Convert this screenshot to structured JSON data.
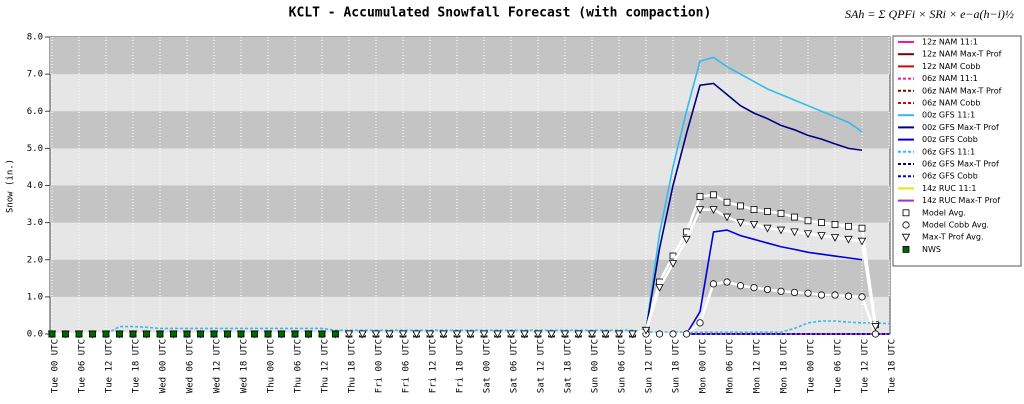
{
  "chart_data": {
    "type": "line",
    "title": "KCLT - Accumulated Snowfall Forecast (with compaction)",
    "formula": "SAh = Σ QPFi × SRi × e−a(h−i)½",
    "y_label": "Snow (in.)",
    "ylim": [
      0,
      8
    ],
    "yticks": [
      {
        "value": 0,
        "label": "0.0"
      },
      {
        "value": 1,
        "label": "1.0"
      },
      {
        "value": 2,
        "label": "2.0"
      },
      {
        "value": 3,
        "label": "3.0"
      },
      {
        "value": 4,
        "label": "4.0"
      },
      {
        "value": 5,
        "label": "5.0"
      },
      {
        "value": 6,
        "label": "6.0"
      },
      {
        "value": 7,
        "label": "7.0"
      },
      {
        "value": 8,
        "label": "8.0"
      }
    ],
    "grid": true,
    "categories": [
      "Tue 00 UTC",
      null,
      "Tue 06 UTC",
      null,
      "Tue 12 UTC",
      null,
      "Tue 18 UTC",
      null,
      "Wed 00 UTC",
      null,
      "Wed 06 UTC",
      null,
      "Wed 12 UTC",
      null,
      "Wed 18 UTC",
      null,
      "Thu 00 UTC",
      null,
      "Thu 06 UTC",
      null,
      "Thu 12 UTC",
      null,
      "Thu 18 UTC",
      null,
      "Fri 00 UTC",
      null,
      "Fri 06 UTC",
      null,
      "Fri 12 UTC",
      null,
      "Fri 18 UTC",
      null,
      "Sat 00 UTC",
      null,
      "Sat 06 UTC",
      null,
      "Sat 12 UTC",
      null,
      "Sat 18 UTC",
      null,
      "Sun 00 UTC",
      null,
      "Sun 06 UTC",
      null,
      "Sun 12 UTC",
      null,
      "Sun 18 UTC",
      null,
      "Mon 00 UTC",
      null,
      "Mon 06 UTC",
      null,
      "Mon 12 UTC",
      null,
      "Mon 18 UTC",
      null,
      "Tue 00 UTC",
      null,
      "Tue 06 UTC",
      null,
      "Tue 12 UTC",
      null,
      "Tue 18 UTC"
    ],
    "series": [
      {
        "name": "12z NAM 11:1",
        "color": "#ff1493",
        "dash": false,
        "values": [
          0,
          0,
          0,
          0,
          0,
          0,
          0,
          0,
          0,
          0,
          0,
          0,
          0,
          0,
          0,
          0,
          0,
          0,
          0,
          0,
          0,
          0,
          0,
          0,
          0,
          0,
          0,
          0,
          0,
          0,
          0,
          0,
          0,
          0,
          0,
          0,
          0,
          0,
          0,
          0,
          0,
          0,
          0,
          0,
          0,
          0,
          0,
          0,
          0,
          0,
          0,
          0,
          0,
          0,
          0,
          0,
          0,
          0,
          0,
          0,
          0,
          0,
          0
        ]
      },
      {
        "name": "12z NAM Max-T Prof",
        "color": "#800000",
        "dash": false,
        "values": [
          0,
          0,
          0,
          0,
          0,
          0,
          0,
          0,
          0,
          0,
          0,
          0,
          0,
          0,
          0,
          0,
          0,
          0,
          0,
          0,
          0,
          0,
          0,
          0,
          0,
          0,
          0,
          0,
          0,
          0,
          0,
          0,
          0,
          0,
          0,
          0,
          0,
          0,
          0,
          0,
          0,
          0,
          0,
          0,
          0,
          0,
          0,
          0,
          0,
          0,
          0,
          0,
          0,
          0,
          0,
          0,
          0,
          0,
          0,
          0,
          0,
          0,
          0
        ]
      },
      {
        "name": "12z NAM Cobb",
        "color": "#dd0000",
        "dash": false,
        "values": [
          0,
          0,
          0,
          0,
          0,
          0,
          0,
          0,
          0,
          0,
          0,
          0,
          0,
          0,
          0,
          0,
          0,
          0,
          0,
          0,
          0,
          0,
          0,
          0,
          0,
          0,
          0,
          0,
          0,
          0,
          0,
          0,
          0,
          0,
          0,
          0,
          0,
          0,
          0,
          0,
          0,
          0,
          0,
          0,
          0,
          0,
          0,
          0,
          0,
          0,
          0,
          0,
          0,
          0,
          0,
          0,
          0,
          0,
          0,
          0,
          0,
          0,
          0
        ]
      },
      {
        "name": "06z NAM 11:1",
        "color": "#ff1493",
        "dash": true,
        "values": [
          0,
          0,
          0,
          0,
          0,
          0,
          0,
          0,
          0,
          0,
          0,
          0,
          0,
          0,
          0,
          0,
          0,
          0,
          0,
          0,
          0,
          0,
          0,
          0,
          0,
          0,
          0,
          0,
          0,
          0,
          0,
          0,
          0,
          0,
          0,
          0,
          0,
          0,
          0,
          0,
          0,
          0,
          0,
          0,
          0,
          0,
          0,
          0,
          0,
          0,
          0,
          0,
          0,
          0,
          0,
          0,
          0,
          0,
          0,
          0,
          0,
          0,
          0
        ]
      },
      {
        "name": "06z NAM Max-T Prof",
        "color": "#800000",
        "dash": true,
        "values": [
          0,
          0,
          0,
          0,
          0,
          0,
          0,
          0,
          0,
          0,
          0,
          0,
          0,
          0,
          0,
          0,
          0,
          0,
          0,
          0,
          0,
          0,
          0,
          0,
          0,
          0,
          0,
          0,
          0,
          0,
          0,
          0,
          0,
          0,
          0,
          0,
          0,
          0,
          0,
          0,
          0,
          0,
          0,
          0,
          0,
          0,
          0,
          0,
          0,
          0,
          0,
          0,
          0,
          0,
          0,
          0,
          0,
          0,
          0,
          0,
          0,
          0,
          0
        ]
      },
      {
        "name": "06z NAM Cobb",
        "color": "#dd0000",
        "dash": true,
        "values": [
          0,
          0,
          0,
          0,
          0,
          0,
          0,
          0,
          0,
          0,
          0,
          0,
          0,
          0,
          0,
          0,
          0,
          0,
          0,
          0,
          0,
          0,
          0,
          0,
          0,
          0,
          0,
          0,
          0,
          0,
          0,
          0,
          0,
          0,
          0,
          0,
          0,
          0,
          0,
          0,
          0,
          0,
          0,
          0,
          0,
          0,
          0,
          0,
          0,
          0,
          0,
          0,
          0,
          0,
          0,
          0,
          0,
          0,
          0,
          0,
          0,
          0,
          0
        ]
      },
      {
        "name": "14z RUC 11:1",
        "color": "#e6e600",
        "dash": false,
        "values": [
          0,
          0,
          0,
          0,
          0,
          0,
          0,
          0,
          0,
          0,
          0,
          0,
          0,
          0,
          0,
          0,
          0,
          0,
          0,
          0,
          0,
          0,
          0,
          0,
          0,
          0,
          0,
          0,
          0,
          0,
          0,
          0,
          0,
          0,
          0,
          0,
          0,
          0,
          0,
          0,
          0,
          0,
          0,
          0,
          0,
          0,
          0,
          0,
          0,
          0,
          0,
          0,
          0,
          0,
          0,
          0,
          0,
          0,
          0,
          0,
          0,
          0,
          0
        ]
      },
      {
        "name": "14z RUC Max-T Prof",
        "color": "#9933cc",
        "dash": false,
        "values": [
          0,
          0,
          0,
          0,
          0,
          0,
          0,
          0,
          0,
          0,
          0,
          0,
          0,
          0,
          0,
          0,
          0,
          0,
          0,
          0,
          0,
          0,
          0,
          0,
          0,
          0,
          0,
          0,
          0,
          0,
          0,
          0,
          0,
          0,
          0,
          0,
          0,
          0,
          0,
          0,
          0,
          0,
          0,
          0,
          0,
          0,
          0,
          0,
          0,
          0,
          0,
          0,
          0,
          0,
          0,
          0,
          0,
          0,
          0,
          0,
          0,
          0,
          0
        ]
      },
      {
        "name": "06z GFS Max-T Prof",
        "color": "#000080",
        "dash": true,
        "values": [
          0,
          0,
          0,
          0,
          0,
          0,
          0,
          0,
          0,
          0,
          0,
          0,
          0,
          0,
          0,
          0,
          0,
          0,
          0,
          0,
          0,
          0,
          0,
          0,
          0,
          0,
          0,
          0,
          0,
          0,
          0,
          0,
          0,
          0,
          0,
          0,
          0,
          0,
          0,
          0,
          0,
          0,
          0,
          0,
          0,
          0,
          0,
          0,
          0,
          0,
          0,
          0,
          0,
          0,
          0,
          0,
          0,
          0,
          0,
          0,
          0,
          0,
          0
        ]
      },
      {
        "name": "06z GFS Cobb",
        "color": "#0000dd",
        "dash": true,
        "values": [
          0,
          0,
          0,
          0,
          0,
          0,
          0,
          0,
          0,
          0,
          0,
          0,
          0,
          0,
          0,
          0,
          0,
          0,
          0,
          0,
          0,
          0,
          0,
          0,
          0,
          0,
          0,
          0,
          0,
          0,
          0,
          0,
          0,
          0,
          0,
          0,
          0,
          0,
          0,
          0,
          0,
          0,
          0,
          0,
          0,
          0,
          0,
          0,
          0,
          0,
          0,
          0,
          0,
          0,
          0,
          0,
          0,
          0,
          0,
          0,
          0,
          0,
          0
        ]
      },
      {
        "name": "06z GFS 11:1",
        "color": "#33bbee",
        "dash": true,
        "values": [
          0,
          0,
          0,
          0,
          0,
          0.2,
          0.2,
          0.18,
          0.15,
          0.15,
          0.15,
          0.15,
          0.15,
          0.15,
          0.15,
          0.15,
          0.15,
          0.15,
          0.15,
          0.15,
          0.15,
          0.1,
          0.1,
          0.1,
          0.1,
          0.1,
          0.1,
          0.1,
          0.1,
          0.1,
          0.1,
          0.1,
          0.1,
          0.1,
          0.1,
          0.1,
          0.1,
          0.1,
          0.1,
          0.1,
          0.1,
          0.1,
          0.1,
          0.1,
          0.05,
          0.05,
          0.05,
          0.05,
          0.05,
          0.05,
          0.05,
          0.05,
          0.05,
          0.05,
          0.05,
          0.15,
          0.3,
          0.35,
          0.35,
          0.32,
          0.3,
          0.3,
          0.28
        ]
      },
      {
        "name": "00z GFS 11:1",
        "color": "#33bbee",
        "dash": false,
        "values": [
          0,
          0,
          0,
          0,
          0,
          0,
          0,
          0,
          0,
          0,
          0,
          0,
          0,
          0,
          0,
          0,
          0,
          0,
          0,
          0,
          0,
          0,
          0,
          0,
          0,
          0,
          0,
          0,
          0,
          0,
          0,
          0,
          0,
          0,
          0,
          0,
          0,
          0,
          0,
          0,
          0,
          0,
          0,
          0,
          0.1,
          2.7,
          4.5,
          6.0,
          7.35,
          7.45,
          7.2,
          7.0,
          6.8,
          6.6,
          6.45,
          6.3,
          6.15,
          6.0,
          5.85,
          5.7,
          5.45,
          null,
          null
        ]
      },
      {
        "name": "00z GFS Max-T Prof",
        "color": "#000080",
        "dash": false,
        "values": [
          0,
          0,
          0,
          0,
          0,
          0,
          0,
          0,
          0,
          0,
          0,
          0,
          0,
          0,
          0,
          0,
          0,
          0,
          0,
          0,
          0,
          0,
          0,
          0,
          0,
          0,
          0,
          0,
          0,
          0,
          0,
          0,
          0,
          0,
          0,
          0,
          0,
          0,
          0,
          0,
          0,
          0,
          0,
          0,
          0.1,
          2.3,
          4.0,
          5.4,
          6.7,
          6.75,
          6.45,
          6.15,
          5.95,
          5.8,
          5.62,
          5.5,
          5.35,
          5.25,
          5.12,
          5.0,
          4.95,
          null,
          null
        ]
      },
      {
        "name": "00z GFS Cobb",
        "color": "#0000dd",
        "dash": false,
        "values": [
          0,
          0,
          0,
          0,
          0,
          0,
          0,
          0,
          0,
          0,
          0,
          0,
          0,
          0,
          0,
          0,
          0,
          0,
          0,
          0,
          0,
          0,
          0,
          0,
          0,
          0,
          0,
          0,
          0,
          0,
          0,
          0,
          0,
          0,
          0,
          0,
          0,
          0,
          0,
          0,
          0,
          0,
          0,
          0,
          0,
          0,
          0,
          0,
          0.6,
          2.75,
          2.8,
          2.65,
          2.55,
          2.45,
          2.35,
          2.28,
          2.2,
          2.15,
          2.1,
          2.05,
          2.0,
          null,
          null
        ]
      },
      {
        "name": "Model Avg.",
        "color": "#ffffff",
        "marker": "square",
        "dash": false,
        "values": [
          0,
          0,
          0,
          0,
          0,
          0,
          0,
          0,
          0,
          0,
          0,
          0,
          0,
          0,
          0,
          0,
          0,
          0,
          0,
          0,
          0,
          0,
          0,
          0,
          0,
          0,
          0,
          0,
          0,
          0,
          0,
          0,
          0,
          0,
          0,
          0,
          0,
          0,
          0,
          0,
          0,
          0,
          0,
          0,
          0.1,
          1.4,
          2.1,
          2.75,
          3.7,
          3.75,
          3.55,
          3.45,
          3.35,
          3.3,
          3.25,
          3.15,
          3.05,
          3.0,
          2.95,
          2.9,
          2.85,
          0.25,
          null
        ]
      },
      {
        "name": "Model Cobb Avg.",
        "color": "#ffffff",
        "marker": "circle",
        "dash": false,
        "values": [
          0,
          0,
          0,
          0,
          0,
          0,
          0,
          0,
          0,
          0,
          0,
          0,
          0,
          0,
          0,
          0,
          0,
          0,
          0,
          0,
          0,
          0,
          0,
          0,
          0,
          0,
          0,
          0,
          0,
          0,
          0,
          0,
          0,
          0,
          0,
          0,
          0,
          0,
          0,
          0,
          0,
          0,
          0,
          0,
          0,
          0,
          0,
          0,
          0.3,
          1.35,
          1.4,
          1.3,
          1.25,
          1.2,
          1.15,
          1.12,
          1.1,
          1.05,
          1.05,
          1.02,
          1.0,
          0.0,
          null
        ]
      },
      {
        "name": "Max-T Prof Avg.",
        "color": "#ffffff",
        "marker": "triangle",
        "dash": false,
        "values": [
          0,
          0,
          0,
          0,
          0,
          0,
          0,
          0,
          0,
          0,
          0,
          0,
          0,
          0,
          0,
          0,
          0,
          0,
          0,
          0,
          0,
          0,
          0,
          0,
          0,
          0,
          0,
          0,
          0,
          0,
          0,
          0,
          0,
          0,
          0,
          0,
          0,
          0,
          0,
          0,
          0,
          0,
          0,
          0,
          0.1,
          1.25,
          1.9,
          2.55,
          3.35,
          3.35,
          3.15,
          3.0,
          2.95,
          2.85,
          2.8,
          2.75,
          2.7,
          2.65,
          2.6,
          2.55,
          2.5,
          0.2,
          null
        ]
      },
      {
        "name": "NWS",
        "color": "#006600",
        "marker": "filled-square",
        "dash": false,
        "values": [
          0,
          0,
          0,
          0,
          0,
          0,
          0,
          0,
          0,
          0,
          0,
          0,
          0,
          0,
          0,
          0,
          0,
          0,
          0,
          0,
          0,
          0,
          null,
          null,
          null,
          null,
          null,
          null,
          null,
          null,
          null,
          null,
          null,
          null,
          null,
          null,
          null,
          null,
          null,
          null,
          null,
          null,
          null,
          null,
          null,
          null,
          null,
          null,
          null,
          null,
          null,
          null,
          null,
          null,
          null,
          null,
          null,
          null,
          null,
          null,
          null,
          null,
          null
        ]
      }
    ],
    "legend_order": [
      0,
      1,
      2,
      3,
      4,
      5,
      11,
      12,
      13,
      10,
      8,
      9,
      6,
      7,
      14,
      15,
      16,
      17
    ]
  }
}
